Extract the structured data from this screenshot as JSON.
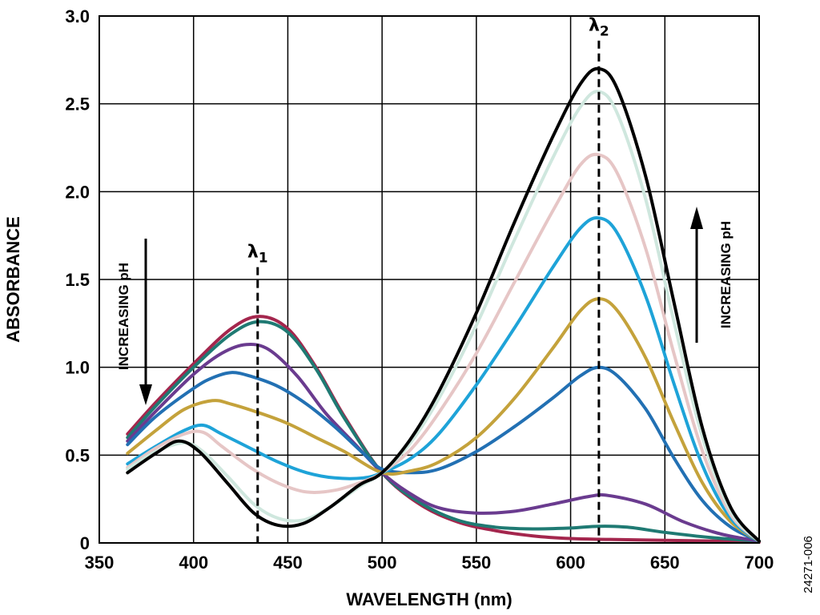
{
  "chart_data": {
    "type": "line",
    "title": "",
    "xlabel": "WAVELENGTH (nm)",
    "ylabel": "ABSORBANCE",
    "xlim": [
      350,
      700
    ],
    "ylim": [
      0,
      3.0
    ],
    "xticks": [
      350,
      400,
      450,
      500,
      550,
      600,
      650,
      700
    ],
    "xtick_labels": [
      "350",
      "400",
      "450",
      "500",
      "550",
      "600",
      "650",
      "700"
    ],
    "yticks": [
      0,
      0.5,
      1.0,
      1.5,
      2.0,
      2.5,
      3.0
    ],
    "ytick_labels": [
      "0",
      "0.5",
      "1.0",
      "1.5",
      "2.0",
      "2.5",
      "3.0"
    ],
    "grid": true,
    "legend": "none",
    "markers": [
      {
        "label": "λ1",
        "base": "λ",
        "sub": "1",
        "x": 434,
        "y_top": 1.57
      },
      {
        "label": "λ2",
        "base": "λ",
        "sub": "2",
        "x": 615,
        "y_top": 2.86
      }
    ],
    "annotations": [
      {
        "text": "INCREASING pH",
        "direction": "down",
        "position": "left"
      },
      {
        "text": "INCREASING pH",
        "direction": "up",
        "position": "right"
      }
    ],
    "figure_id": "24271-006",
    "series": [
      {
        "color": "#a4264d",
        "points": [
          [
            365,
            0.62
          ],
          [
            380,
            0.8
          ],
          [
            400,
            1.02
          ],
          [
            420,
            1.22
          ],
          [
            435,
            1.29
          ],
          [
            450,
            1.22
          ],
          [
            465,
            1.0
          ],
          [
            480,
            0.72
          ],
          [
            500,
            0.4
          ],
          [
            520,
            0.22
          ],
          [
            540,
            0.12
          ],
          [
            560,
            0.07
          ],
          [
            580,
            0.04
          ],
          [
            600,
            0.025
          ],
          [
            620,
            0.02
          ],
          [
            650,
            0.015
          ],
          [
            680,
            0.01
          ],
          [
            700,
            0.005
          ]
        ]
      },
      {
        "color": "#1f7a73",
        "points": [
          [
            365,
            0.6
          ],
          [
            380,
            0.78
          ],
          [
            400,
            1.0
          ],
          [
            420,
            1.19
          ],
          [
            435,
            1.26
          ],
          [
            450,
            1.2
          ],
          [
            465,
            0.99
          ],
          [
            480,
            0.71
          ],
          [
            500,
            0.4
          ],
          [
            520,
            0.23
          ],
          [
            540,
            0.13
          ],
          [
            560,
            0.09
          ],
          [
            580,
            0.08
          ],
          [
            600,
            0.085
          ],
          [
            615,
            0.095
          ],
          [
            630,
            0.09
          ],
          [
            650,
            0.06
          ],
          [
            675,
            0.03
          ],
          [
            700,
            0.01
          ]
        ]
      },
      {
        "color": "#6a3b8f",
        "points": [
          [
            365,
            0.58
          ],
          [
            380,
            0.75
          ],
          [
            400,
            0.96
          ],
          [
            415,
            1.08
          ],
          [
            428,
            1.13
          ],
          [
            440,
            1.1
          ],
          [
            455,
            0.95
          ],
          [
            470,
            0.74
          ],
          [
            485,
            0.57
          ],
          [
            500,
            0.4
          ],
          [
            515,
            0.28
          ],
          [
            530,
            0.2
          ],
          [
            550,
            0.17
          ],
          [
            570,
            0.18
          ],
          [
            590,
            0.22
          ],
          [
            610,
            0.265
          ],
          [
            620,
            0.27
          ],
          [
            640,
            0.22
          ],
          [
            660,
            0.12
          ],
          [
            680,
            0.05
          ],
          [
            700,
            0.01
          ]
        ]
      },
      {
        "color": "#2270b3",
        "points": [
          [
            365,
            0.56
          ],
          [
            380,
            0.72
          ],
          [
            400,
            0.88
          ],
          [
            410,
            0.94
          ],
          [
            420,
            0.97
          ],
          [
            430,
            0.95
          ],
          [
            445,
            0.89
          ],
          [
            460,
            0.79
          ],
          [
            475,
            0.66
          ],
          [
            490,
            0.51
          ],
          [
            500,
            0.42
          ],
          [
            515,
            0.4
          ],
          [
            530,
            0.42
          ],
          [
            550,
            0.52
          ],
          [
            570,
            0.66
          ],
          [
            590,
            0.82
          ],
          [
            605,
            0.95
          ],
          [
            615,
            1.0
          ],
          [
            625,
            0.95
          ],
          [
            640,
            0.76
          ],
          [
            655,
            0.48
          ],
          [
            670,
            0.24
          ],
          [
            685,
            0.09
          ],
          [
            700,
            0.01
          ]
        ]
      },
      {
        "color": "#c4a23b",
        "points": [
          [
            365,
            0.51
          ],
          [
            380,
            0.64
          ],
          [
            395,
            0.76
          ],
          [
            410,
            0.81
          ],
          [
            420,
            0.79
          ],
          [
            435,
            0.74
          ],
          [
            450,
            0.68
          ],
          [
            465,
            0.6
          ],
          [
            480,
            0.52
          ],
          [
            500,
            0.4
          ],
          [
            515,
            0.41
          ],
          [
            530,
            0.46
          ],
          [
            550,
            0.6
          ],
          [
            570,
            0.82
          ],
          [
            590,
            1.1
          ],
          [
            605,
            1.32
          ],
          [
            615,
            1.39
          ],
          [
            625,
            1.32
          ],
          [
            640,
            1.05
          ],
          [
            655,
            0.68
          ],
          [
            670,
            0.34
          ],
          [
            685,
            0.12
          ],
          [
            700,
            0.01
          ]
        ]
      },
      {
        "color": "#1ea3d8",
        "points": [
          [
            365,
            0.45
          ],
          [
            380,
            0.55
          ],
          [
            395,
            0.64
          ],
          [
            405,
            0.67
          ],
          [
            415,
            0.62
          ],
          [
            430,
            0.54
          ],
          [
            445,
            0.46
          ],
          [
            460,
            0.4
          ],
          [
            475,
            0.37
          ],
          [
            490,
            0.37
          ],
          [
            500,
            0.4
          ],
          [
            515,
            0.48
          ],
          [
            530,
            0.62
          ],
          [
            550,
            0.9
          ],
          [
            570,
            1.22
          ],
          [
            590,
            1.56
          ],
          [
            605,
            1.79
          ],
          [
            615,
            1.85
          ],
          [
            625,
            1.76
          ],
          [
            640,
            1.4
          ],
          [
            655,
            0.9
          ],
          [
            670,
            0.44
          ],
          [
            685,
            0.14
          ],
          [
            700,
            0.01
          ]
        ]
      },
      {
        "color": "#e6c6c6",
        "points": [
          [
            365,
            0.43
          ],
          [
            380,
            0.54
          ],
          [
            395,
            0.62
          ],
          [
            405,
            0.63
          ],
          [
            415,
            0.55
          ],
          [
            430,
            0.43
          ],
          [
            445,
            0.34
          ],
          [
            460,
            0.29
          ],
          [
            475,
            0.3
          ],
          [
            490,
            0.35
          ],
          [
            500,
            0.4
          ],
          [
            515,
            0.53
          ],
          [
            530,
            0.74
          ],
          [
            550,
            1.08
          ],
          [
            570,
            1.48
          ],
          [
            590,
            1.88
          ],
          [
            605,
            2.15
          ],
          [
            615,
            2.21
          ],
          [
            625,
            2.1
          ],
          [
            640,
            1.67
          ],
          [
            655,
            1.07
          ],
          [
            670,
            0.52
          ],
          [
            685,
            0.16
          ],
          [
            700,
            0.01
          ]
        ]
      },
      {
        "color": "#cfe7de",
        "points": [
          [
            365,
            0.42
          ],
          [
            380,
            0.52
          ],
          [
            395,
            0.57
          ],
          [
            405,
            0.52
          ],
          [
            418,
            0.38
          ],
          [
            432,
            0.22
          ],
          [
            445,
            0.14
          ],
          [
            458,
            0.13
          ],
          [
            472,
            0.2
          ],
          [
            488,
            0.32
          ],
          [
            500,
            0.4
          ],
          [
            515,
            0.57
          ],
          [
            530,
            0.82
          ],
          [
            550,
            1.24
          ],
          [
            570,
            1.72
          ],
          [
            590,
            2.18
          ],
          [
            605,
            2.48
          ],
          [
            615,
            2.57
          ],
          [
            625,
            2.44
          ],
          [
            640,
            1.95
          ],
          [
            655,
            1.25
          ],
          [
            670,
            0.6
          ],
          [
            685,
            0.18
          ],
          [
            700,
            0.01
          ]
        ]
      },
      {
        "color": "#000000",
        "points": [
          [
            365,
            0.4
          ],
          [
            380,
            0.51
          ],
          [
            392,
            0.58
          ],
          [
            403,
            0.52
          ],
          [
            418,
            0.34
          ],
          [
            432,
            0.17
          ],
          [
            445,
            0.1
          ],
          [
            458,
            0.11
          ],
          [
            472,
            0.2
          ],
          [
            488,
            0.33
          ],
          [
            500,
            0.4
          ],
          [
            515,
            0.59
          ],
          [
            530,
            0.86
          ],
          [
            550,
            1.31
          ],
          [
            570,
            1.82
          ],
          [
            590,
            2.3
          ],
          [
            605,
            2.61
          ],
          [
            615,
            2.7
          ],
          [
            625,
            2.58
          ],
          [
            640,
            2.08
          ],
          [
            655,
            1.36
          ],
          [
            670,
            0.65
          ],
          [
            685,
            0.2
          ],
          [
            700,
            0.01
          ]
        ]
      }
    ]
  }
}
